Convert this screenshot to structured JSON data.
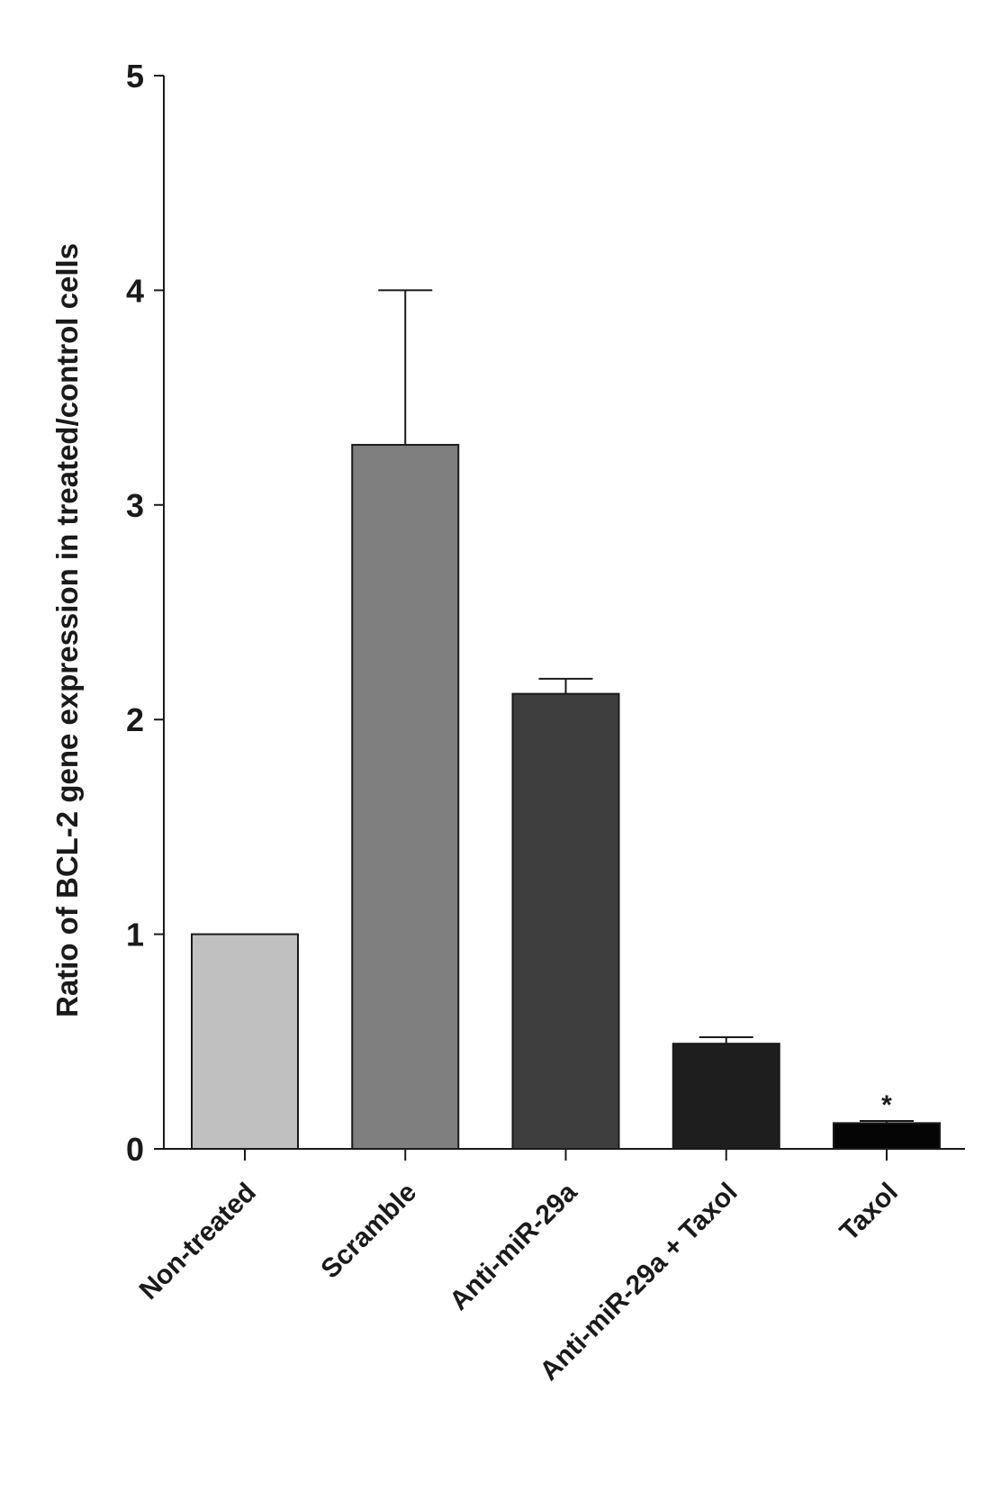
{
  "chart_data": {
    "type": "bar",
    "title": "",
    "xlabel": "",
    "ylabel": "Ratio of BCL-2 gene expression in treated/control cells",
    "ylim": [
      0,
      5
    ],
    "yticks": [
      "0",
      "1",
      "2",
      "3",
      "4",
      "5"
    ],
    "grid": false,
    "legend": "none",
    "categories": [
      "Non-treated",
      "Scramble",
      "Anti-miR-29a",
      "Anti-miR-29a + Taxol",
      "Taxol"
    ],
    "values": [
      1.0,
      3.28,
      2.12,
      0.49,
      0.12
    ],
    "error_upper": [
      0,
      0.72,
      0.07,
      0.03,
      0.01
    ],
    "bar_colors": [
      "#c0c0c0",
      "#7f7f7f",
      "#3e3e3e",
      "#1e1e1e",
      "#050505"
    ],
    "annotations": [
      {
        "category": "Taxol",
        "text": "*"
      }
    ]
  }
}
